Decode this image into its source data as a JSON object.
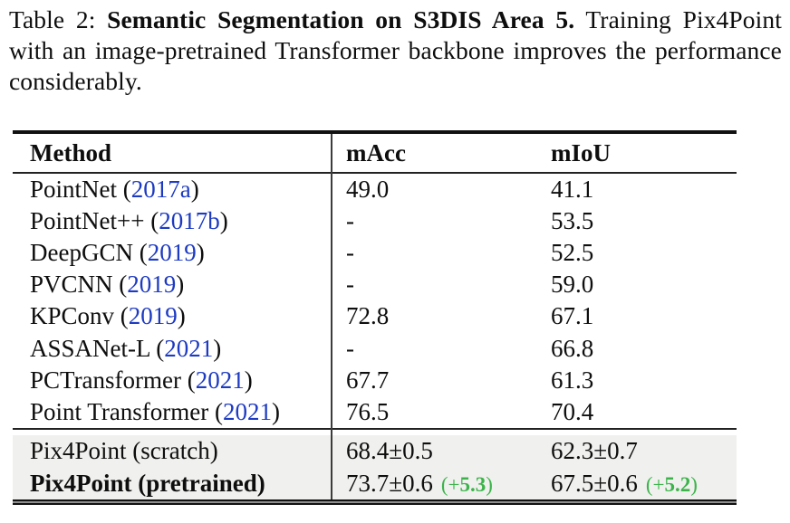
{
  "caption": {
    "prefix": "Table 2: ",
    "title": "Semantic Segmentation on S3DIS Area 5.",
    "rest": " Training Pix4Point with an image-pretrained Transformer backbone improves the performance considerably."
  },
  "table": {
    "columns": [
      "Method",
      "mAcc",
      "mIoU"
    ],
    "rows": [
      {
        "name": "PointNet (",
        "cite": "2017a",
        "after": ")",
        "mAcc": "49.0",
        "mIoU": "41.1"
      },
      {
        "name": "PointNet++ (",
        "cite": "2017b",
        "after": ")",
        "mAcc": "-",
        "mIoU": "53.5"
      },
      {
        "name": "DeepGCN (",
        "cite": "2019",
        "after": ")",
        "mAcc": "-",
        "mIoU": "52.5"
      },
      {
        "name": "PVCNN (",
        "cite": "2019",
        "after": ")",
        "mAcc": "-",
        "mIoU": "59.0"
      },
      {
        "name": "KPConv (",
        "cite": "2019",
        "after": ")",
        "mAcc": "72.8",
        "mIoU": "67.1"
      },
      {
        "name": "ASSANet-L (",
        "cite": "2021",
        "after": ")",
        "mAcc": "-",
        "mIoU": "66.8"
      },
      {
        "name": "PCTransformer (",
        "cite": "2021",
        "after": ")",
        "mAcc": "67.7",
        "mIoU": "61.3"
      },
      {
        "name": "Point Transformer (",
        "cite": "2021",
        "after": ")",
        "mAcc": "76.5",
        "mIoU": "70.4"
      }
    ],
    "highlight_rows": [
      {
        "method": "Pix4Point (scratch)",
        "mAcc": "68.4±0.5",
        "mIoU": "62.3±0.7"
      },
      {
        "method": "Pix4Point (pretrained)",
        "mAcc": "73.7±0.6",
        "mIoU": "67.5±0.6",
        "mAcc_delta": {
          "open": "(+",
          "val": "5.3",
          "close": ")"
        },
        "mIoU_delta": {
          "open": "(+",
          "val": "5.2",
          "close": ")"
        }
      }
    ]
  },
  "colors": {
    "cite_blue": "#1d3ac2",
    "delta_green": "#3cb44b",
    "highlight_bg": "#f0f0ee",
    "rule_black": "#111111"
  }
}
